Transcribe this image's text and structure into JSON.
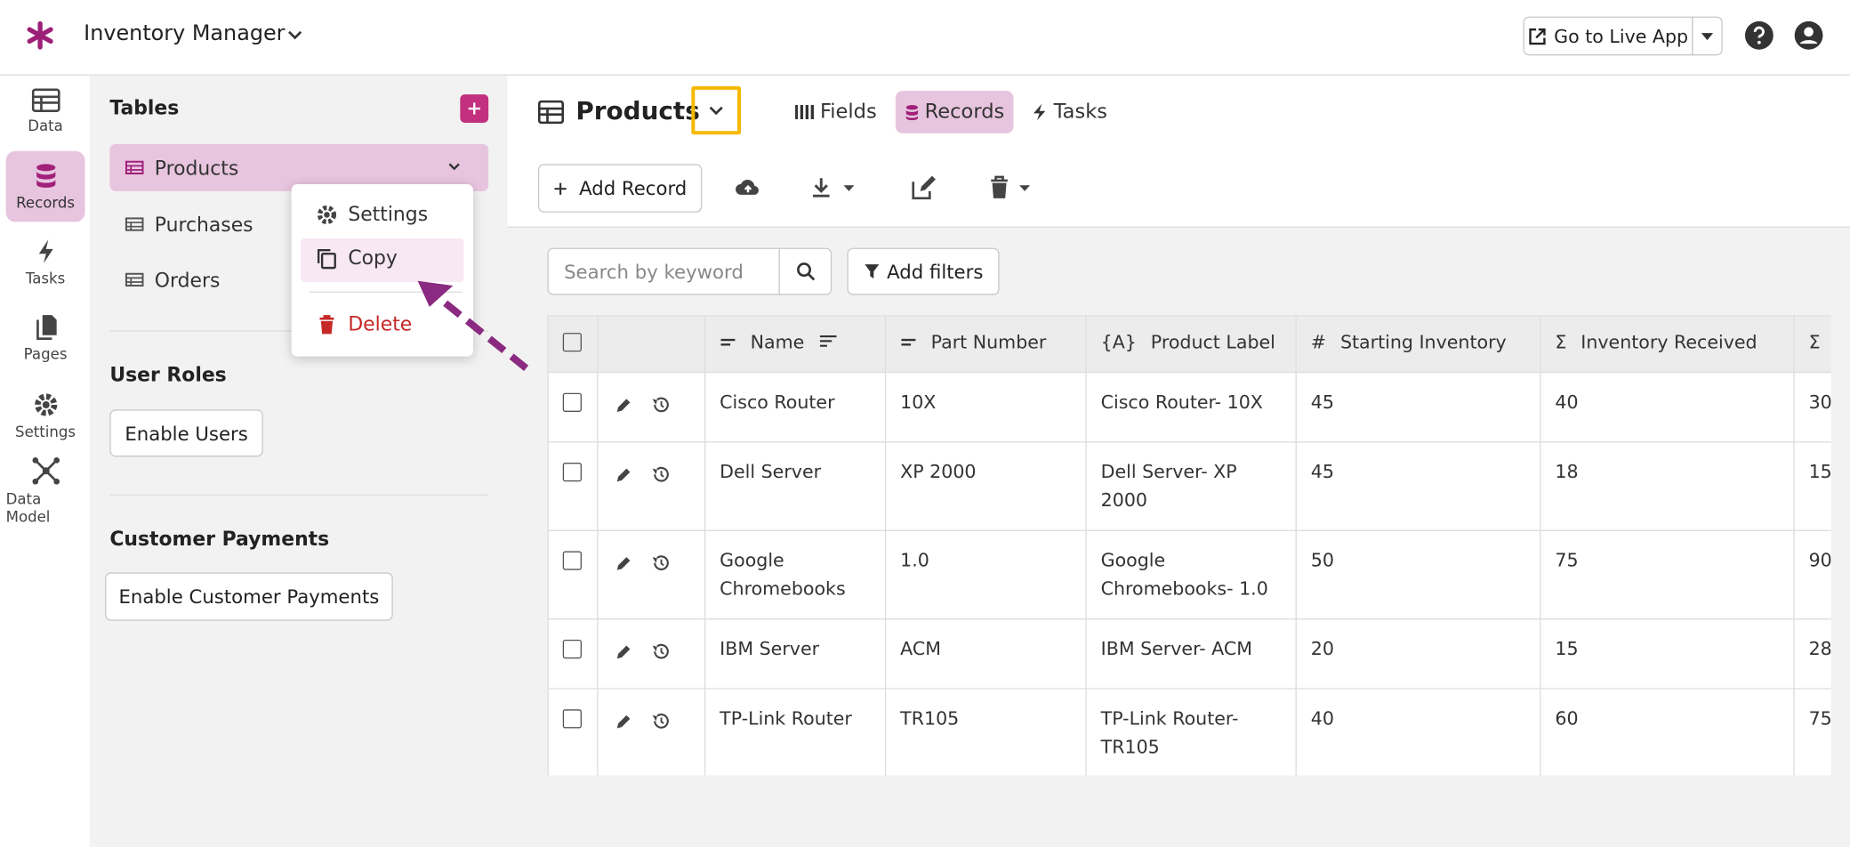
{
  "header": {
    "app_name": "Inventory Manager",
    "live_app_button": "Go to Live App"
  },
  "nav": [
    "Data",
    "Records",
    "Tasks",
    "Pages",
    "Settings",
    "Data Model"
  ],
  "sidebar": {
    "tables_title": "Tables",
    "tables": [
      "Products",
      "Purchases",
      "Orders"
    ],
    "user_roles_title": "User Roles",
    "enable_users": "Enable Users",
    "customer_payments_title": "Customer Payments",
    "enable_customer_payments": "Enable Customer Payments"
  },
  "context_menu": {
    "items": [
      "Settings",
      "Copy",
      "Delete"
    ]
  },
  "main": {
    "title": "Products",
    "tabs": [
      "Fields",
      "Records",
      "Tasks"
    ],
    "add_record": "Add Record",
    "search_placeholder": "Search by keyword",
    "add_filters": "Add filters"
  },
  "table": {
    "columns": [
      {
        "name": "Name"
      },
      {
        "name": "Part Number"
      },
      {
        "icon": "{A}",
        "name": "Product Label"
      },
      {
        "icon": "#",
        "name": "Starting Inventory"
      },
      {
        "icon": "Σ",
        "name": "Inventory Received"
      },
      {
        "icon": "Σ"
      }
    ],
    "rows": [
      [
        "Cisco Router",
        "10X",
        "Cisco Router- 10X",
        45,
        40,
        30
      ],
      [
        "Dell Server",
        "XP 2000",
        "Dell Server- XP 2000",
        45,
        18,
        15
      ],
      [
        "Google Chromebooks",
        "1.0",
        "Google Chromebooks- 1.0",
        50,
        75,
        90
      ],
      [
        "IBM Server",
        "ACM",
        "IBM Server- ACM",
        20,
        15,
        28
      ],
      [
        "TP-Link Router",
        "TR105",
        "TP-Link Router- TR105",
        40,
        60,
        75
      ]
    ]
  }
}
